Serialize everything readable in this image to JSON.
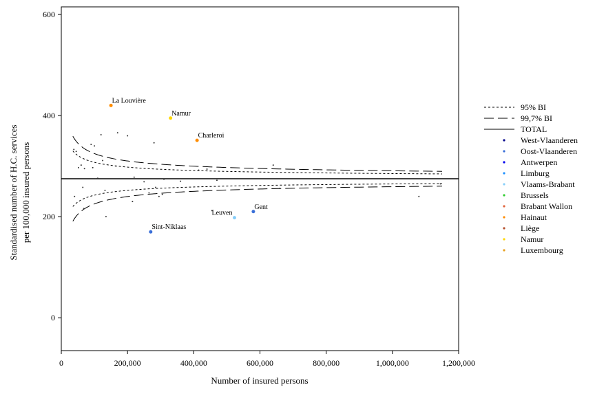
{
  "chart_data": {
    "type": "scatter",
    "title": "",
    "xlabel": "Number of insured persons",
    "ylabel_line1": "Standardised number of H.C. services",
    "ylabel_line2": "per 100,000 insured persons",
    "xlim": [
      0,
      1200000
    ],
    "ylim": [
      -65,
      615
    ],
    "x_ticks": [
      {
        "value": 0,
        "label": "0"
      },
      {
        "value": 200000,
        "label": "200,000"
      },
      {
        "value": 400000,
        "label": "400,000"
      },
      {
        "value": 600000,
        "label": "600,000"
      },
      {
        "value": 800000,
        "label": "800,000"
      },
      {
        "value": 1000000,
        "label": "1,000,000"
      },
      {
        "value": 1200000,
        "label": "1,200,000"
      }
    ],
    "y_ticks": [
      {
        "value": 0,
        "label": "0"
      },
      {
        "value": 200,
        "label": "200"
      },
      {
        "value": 400,
        "label": "400"
      },
      {
        "value": 600,
        "label": "600"
      }
    ],
    "grid": false,
    "legend_position": "right",
    "total": 275,
    "limits": {
      "x_range": [
        35000,
        1150000
      ],
      "ci95": {
        "label": "95% BI",
        "z": 1.96
      },
      "ci997": {
        "label": "99,7% BI",
        "z": 3.0
      },
      "total": {
        "label": "TOTAL"
      }
    },
    "legend": [
      {
        "key": "ci95",
        "label": "95% BI",
        "kind": "line-dotted"
      },
      {
        "key": "ci997",
        "label": "99,7% BI",
        "kind": "line-dashed"
      },
      {
        "key": "total",
        "label": "TOTAL",
        "kind": "line-solid"
      },
      {
        "key": "west-vlaanderen",
        "label": "West-Vlaanderen",
        "kind": "dot",
        "color": "#00008b"
      },
      {
        "key": "oost-vlaanderen",
        "label": "Oost-Vlaanderen",
        "kind": "dot",
        "color": "#3a6fd8"
      },
      {
        "key": "antwerpen",
        "label": "Antwerpen",
        "kind": "dot",
        "color": "#0000ee"
      },
      {
        "key": "limburg",
        "label": "Limburg",
        "kind": "dot",
        "color": "#1e90ff"
      },
      {
        "key": "vlaams-brabant",
        "label": "Vlaams-Brabant",
        "kind": "dot",
        "color": "#87cefa"
      },
      {
        "key": "brussels",
        "label": "Brussels",
        "kind": "dot",
        "color": "#32cd32"
      },
      {
        "key": "brabant-wallon",
        "label": "Brabant Wallon",
        "kind": "dot",
        "color": "#e0643c"
      },
      {
        "key": "hainaut",
        "label": "Hainaut",
        "kind": "dot",
        "color": "#ff8c00"
      },
      {
        "key": "liege",
        "label": "Liège",
        "kind": "dot",
        "color": "#b5502d"
      },
      {
        "key": "namur",
        "label": "Namur",
        "kind": "dot",
        "color": "#ffd700"
      },
      {
        "key": "luxembourg",
        "label": "Luxembourg",
        "kind": "dot",
        "color": "#e8a020"
      }
    ],
    "labeled_points": [
      {
        "label": "La Louvière",
        "x": 150000,
        "y": 420,
        "color": "#ff8c00"
      },
      {
        "label": "Namur",
        "x": 330000,
        "y": 395,
        "color": "#ffd700"
      },
      {
        "label": "Charleroi",
        "x": 410000,
        "y": 351,
        "color": "#ff8c00"
      },
      {
        "label": "Gent",
        "x": 580000,
        "y": 210,
        "color": "#3a6fd8"
      },
      {
        "label": "Leuven",
        "x": 523000,
        "y": 198,
        "color": "#87cefa"
      },
      {
        "label": "Sint-Niklaas",
        "x": 270000,
        "y": 170,
        "color": "#3a6fd8"
      }
    ],
    "points": [
      [
        38000,
        333
      ],
      [
        45000,
        329
      ],
      [
        52000,
        297
      ],
      [
        60000,
        302
      ],
      [
        65000,
        258
      ],
      [
        70000,
        295
      ],
      [
        40000,
        240
      ],
      [
        68000,
        216
      ],
      [
        90000,
        343
      ],
      [
        95000,
        297
      ],
      [
        100000,
        340
      ],
      [
        105000,
        275
      ],
      [
        110000,
        276
      ],
      [
        120000,
        362
      ],
      [
        125000,
        311
      ],
      [
        132000,
        252
      ],
      [
        135000,
        200
      ],
      [
        165000,
        300
      ],
      [
        170000,
        366
      ],
      [
        200000,
        360
      ],
      [
        215000,
        230
      ],
      [
        220000,
        278
      ],
      [
        250000,
        269
      ],
      [
        265000,
        247
      ],
      [
        280000,
        346
      ],
      [
        285000,
        258
      ],
      [
        295000,
        240
      ],
      [
        305000,
        244
      ],
      [
        310000,
        274
      ],
      [
        360000,
        270
      ],
      [
        415000,
        292
      ],
      [
        440000,
        294
      ],
      [
        455000,
        212
      ],
      [
        470000,
        272
      ],
      [
        640000,
        302
      ],
      [
        660000,
        256
      ],
      [
        1080000,
        240
      ],
      [
        1145000,
        265
      ]
    ]
  }
}
